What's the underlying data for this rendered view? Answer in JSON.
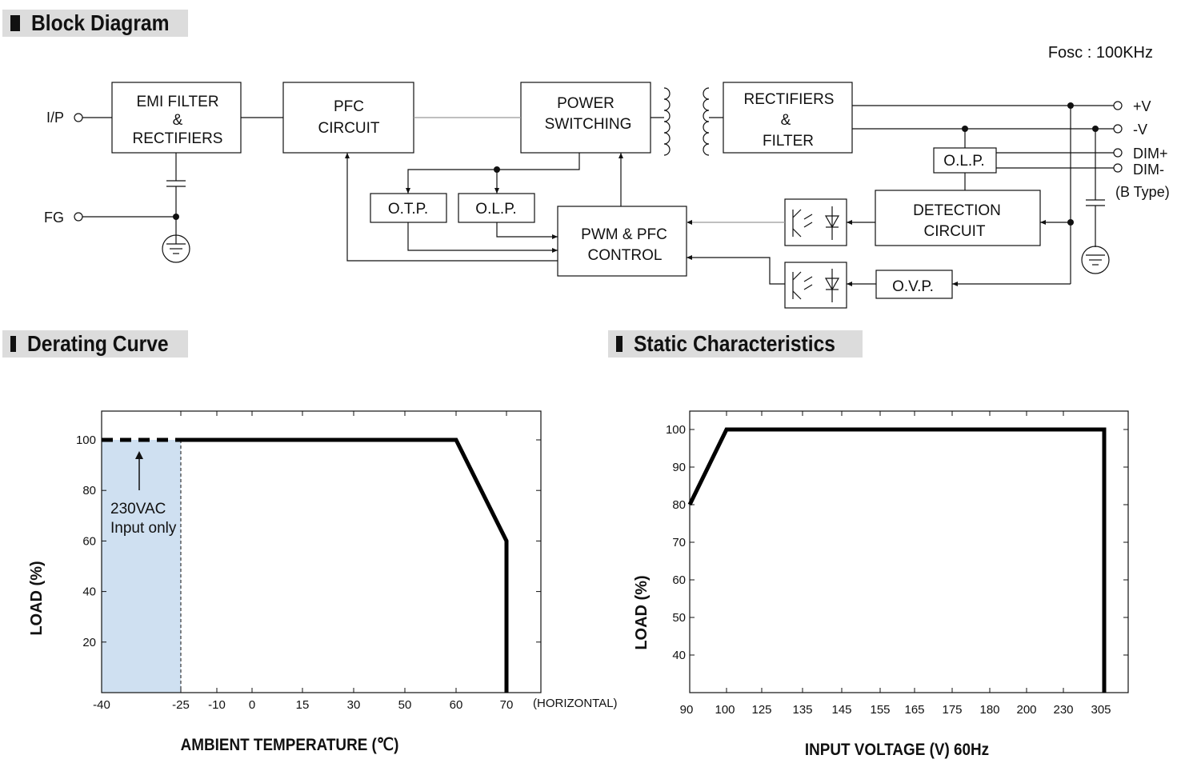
{
  "sections": {
    "block_diagram": "Block Diagram",
    "derating_curve": "Derating Curve",
    "static_characteristics": "Static Characteristics"
  },
  "block": {
    "fosc": "Fosc : 100KHz",
    "ip": "I/P",
    "fg": "FG",
    "emi": [
      "EMI FILTER",
      "&",
      "RECTIFIERS"
    ],
    "pfc": [
      "PFC",
      "CIRCUIT"
    ],
    "power": [
      "POWER",
      "SWITCHING"
    ],
    "rect": [
      "RECTIFIERS",
      "&",
      "FILTER"
    ],
    "otp": "O.T.P.",
    "olp": "O.L.P.",
    "olp2": "O.L.P.",
    "pwm": [
      "PWM & PFC",
      "CONTROL"
    ],
    "detect": [
      "DETECTION",
      "CIRCUIT"
    ],
    "ovp": "O.V.P.",
    "outputs": {
      "vplus": "+V",
      "vminus": "-V",
      "dimplus": "DIM+",
      "dimminus": "DIM-",
      "btype": "(B Type)"
    }
  },
  "chart_data": [
    {
      "type": "line",
      "xlabel": "AMBIENT TEMPERATURE (℃)",
      "ylabel": "LOAD (%)",
      "x_ticks": [
        "-40",
        "-25",
        "-10",
        "0",
        "15",
        "30",
        "50",
        "60",
        "70",
        "(HORIZONTAL)"
      ],
      "y_ticks": [
        "100",
        "80",
        "60",
        "40",
        "20"
      ],
      "ylim": [
        0,
        110
      ],
      "series": [
        {
          "x": [
            -40,
            -25
          ],
          "y": [
            100,
            100
          ],
          "style": "dashed"
        },
        {
          "x": [
            -25,
            60,
            70,
            70
          ],
          "y": [
            100,
            100,
            60,
            0
          ],
          "style": "solid"
        }
      ],
      "annotation": [
        "230VAC",
        "Input only"
      ],
      "shaded_region": {
        "x": [
          -40,
          -25
        ],
        "color": "#cfe0f1"
      }
    },
    {
      "type": "line",
      "xlabel": "INPUT VOLTAGE (V) 60Hz",
      "ylabel": "LOAD (%)",
      "x_ticks": [
        "90",
        "100",
        "125",
        "135",
        "145",
        "155",
        "165",
        "175",
        "180",
        "200",
        "230",
        "305"
      ],
      "y_ticks": [
        "100",
        "90",
        "80",
        "70",
        "60",
        "50",
        "40"
      ],
      "ylim": [
        30,
        105
      ],
      "series": [
        {
          "x": [
            90,
            100,
            305,
            305
          ],
          "y": [
            80,
            100,
            100,
            30
          ]
        }
      ]
    }
  ]
}
